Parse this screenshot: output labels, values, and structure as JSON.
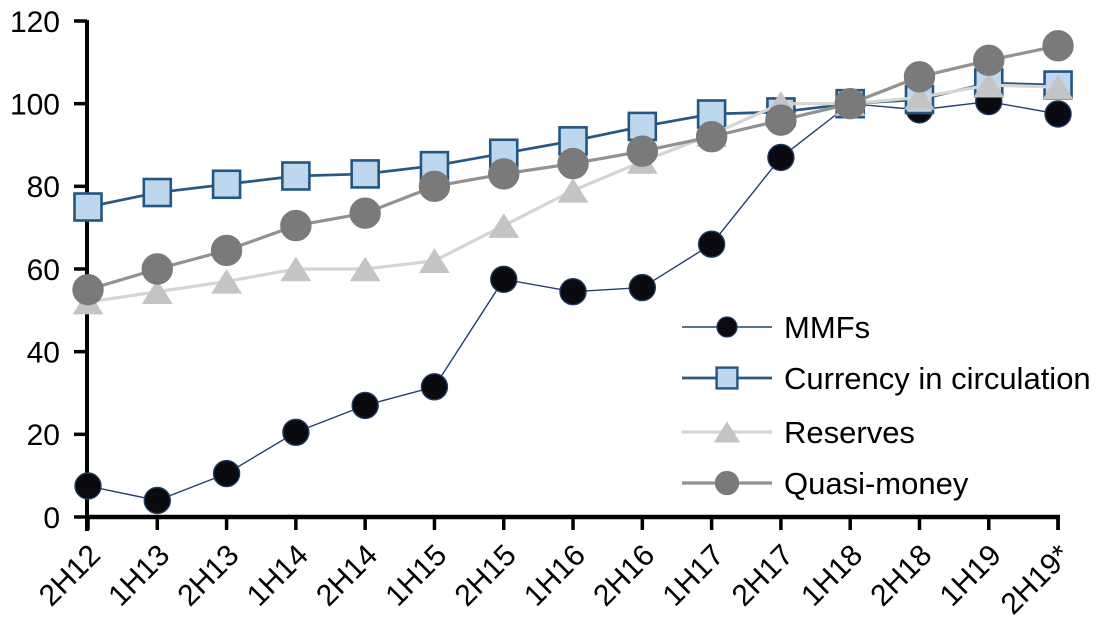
{
  "chart_data": {
    "type": "line",
    "title": "",
    "xlabel": "",
    "ylabel": "",
    "grid": false,
    "legend_position": "middle-right",
    "ylim": [
      0,
      120
    ],
    "yticks": [
      0,
      20,
      40,
      60,
      80,
      100,
      120
    ],
    "categories": [
      "2H12",
      "1H13",
      "2H13",
      "1H14",
      "2H14",
      "1H15",
      "2H15",
      "1H16",
      "2H16",
      "1H17",
      "2H17",
      "1H18",
      "2H18",
      "1H19",
      "2H19*"
    ],
    "index_note": "all series equal 100 at 1H18",
    "series": [
      {
        "name": "MMFs",
        "marker": "circle",
        "marker_fill": "#0a0a10",
        "marker_stroke": "#1f3a5f",
        "line_color": "#24406e",
        "line_width": 1.4,
        "marker_size": 26,
        "values": [
          7.5,
          4,
          10.5,
          20.5,
          27,
          31.5,
          57.5,
          54.5,
          55.5,
          66,
          87,
          100,
          98.5,
          100.5,
          97.5
        ]
      },
      {
        "name": "Currency in circulation",
        "marker": "square",
        "marker_fill": "#bdd7ee",
        "marker_stroke": "#24567f",
        "line_color": "#2a5783",
        "line_width": 2.7,
        "marker_size": 27,
        "values": [
          75,
          78.5,
          80.5,
          82.5,
          83,
          85,
          88,
          91,
          94.5,
          97.5,
          98,
          100,
          101,
          105,
          104.5
        ]
      },
      {
        "name": "Reserves",
        "marker": "triangle",
        "marker_fill": "#c4c4c4",
        "marker_stroke": "#c4c4c4",
        "line_color": "#d5d5d5",
        "line_width": 3.2,
        "marker_size": 30,
        "values": [
          52,
          54.5,
          57,
          60,
          60,
          62,
          70.5,
          79,
          86,
          92.5,
          100,
          100,
          101.5,
          104.5,
          104
        ]
      },
      {
        "name": "Quasi-money",
        "marker": "circle",
        "marker_fill": "#7a7a7a",
        "marker_stroke": "#7a7a7a",
        "line_color": "#929292",
        "line_width": 3.2,
        "marker_size": 30,
        "values": [
          55,
          60,
          64.5,
          70.5,
          73.5,
          80,
          83,
          85.5,
          88.5,
          92,
          96,
          100,
          106.5,
          110.5,
          114
        ]
      }
    ]
  },
  "axis": {
    "color": "#000000",
    "tick_label_color": "#000000"
  },
  "legend": {
    "items": [
      "MMFs",
      "Currency in circulation",
      "Reserves",
      "Quasi-money"
    ]
  }
}
